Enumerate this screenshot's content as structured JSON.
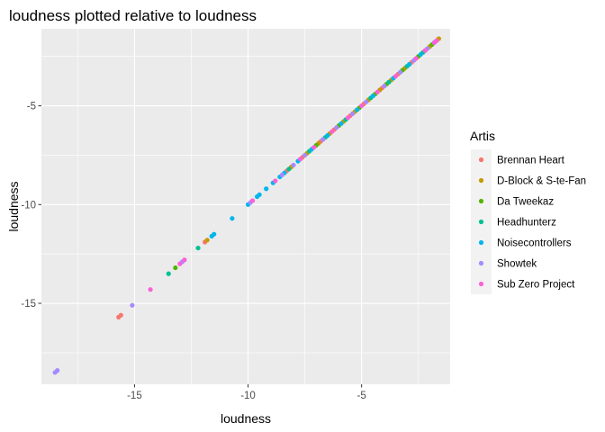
{
  "chart_data": {
    "type": "scatter",
    "title": "loudness plotted relative to loudness",
    "xlabel": "loudness",
    "ylabel": "loudness",
    "xlim": [
      -19.1,
      -1.1
    ],
    "ylim": [
      -19.1,
      -1.1
    ],
    "x_ticks": [
      -15,
      -10,
      -5
    ],
    "y_ticks": [
      -15,
      -10,
      -5
    ],
    "grid": true,
    "legend": {
      "title": "Artis",
      "position": "right"
    },
    "series": [
      {
        "name": "Brennan Heart",
        "color": "#F8766D",
        "points": [
          [
            -15.7,
            -15.7
          ],
          [
            -15.6,
            -15.6
          ],
          [
            -11.9,
            -11.9
          ],
          [
            -8.3,
            -8.3
          ],
          [
            -7.6,
            -7.6
          ],
          [
            -6.8,
            -6.8
          ],
          [
            -6.2,
            -6.2
          ],
          [
            -5.5,
            -5.5
          ],
          [
            -4.9,
            -4.9
          ],
          [
            -4.1,
            -4.1
          ],
          [
            -3.4,
            -3.4
          ],
          [
            -2.8,
            -2.8
          ],
          [
            -2.2,
            -2.2
          ],
          [
            -1.7,
            -1.7
          ]
        ]
      },
      {
        "name": "D-Block & S-te-Fan",
        "color": "#C49A00",
        "points": [
          [
            -11.8,
            -11.8
          ],
          [
            -8.1,
            -8.1
          ],
          [
            -7.4,
            -7.4
          ],
          [
            -6.9,
            -6.9
          ],
          [
            -6.4,
            -6.4
          ],
          [
            -5.8,
            -5.8
          ],
          [
            -5.3,
            -5.3
          ],
          [
            -4.7,
            -4.7
          ],
          [
            -4.2,
            -4.2
          ],
          [
            -3.7,
            -3.7
          ],
          [
            -3.1,
            -3.1
          ],
          [
            -2.6,
            -2.6
          ],
          [
            -2.0,
            -2.0
          ],
          [
            -1.6,
            -1.6
          ]
        ]
      },
      {
        "name": "Da Tweekaz",
        "color": "#53B400",
        "points": [
          [
            -13.2,
            -13.2
          ],
          [
            -7.0,
            -7.0
          ],
          [
            -6.0,
            -6.0
          ],
          [
            -5.1,
            -5.1
          ],
          [
            -4.4,
            -4.4
          ],
          [
            -3.9,
            -3.9
          ],
          [
            -3.2,
            -3.2
          ],
          [
            -2.5,
            -2.5
          ],
          [
            -1.9,
            -1.9
          ]
        ]
      },
      {
        "name": "Headhunterz",
        "color": "#00C094",
        "points": [
          [
            -13.5,
            -13.5
          ],
          [
            -12.2,
            -12.2
          ],
          [
            -8.2,
            -8.2
          ],
          [
            -7.3,
            -7.3
          ],
          [
            -6.6,
            -6.6
          ],
          [
            -5.7,
            -5.7
          ],
          [
            -4.6,
            -4.6
          ],
          [
            -3.8,
            -3.8
          ],
          [
            -3.0,
            -3.0
          ],
          [
            -2.3,
            -2.3
          ]
        ]
      },
      {
        "name": "Noisecontrollers",
        "color": "#00B6EB",
        "points": [
          [
            -11.6,
            -11.6
          ],
          [
            -11.5,
            -11.5
          ],
          [
            -10.7,
            -10.7
          ],
          [
            -10.0,
            -10.0
          ],
          [
            -9.6,
            -9.6
          ],
          [
            -9.5,
            -9.5
          ],
          [
            -9.2,
            -9.2
          ],
          [
            -8.9,
            -8.9
          ],
          [
            -8.6,
            -8.6
          ],
          [
            -8.4,
            -8.4
          ],
          [
            -7.8,
            -7.8
          ],
          [
            -7.2,
            -7.2
          ],
          [
            -6.5,
            -6.5
          ],
          [
            -5.9,
            -5.9
          ],
          [
            -5.2,
            -5.2
          ],
          [
            -4.5,
            -4.5
          ],
          [
            -3.6,
            -3.6
          ],
          [
            -2.9,
            -2.9
          ],
          [
            -2.4,
            -2.4
          ],
          [
            -1.8,
            -1.8
          ]
        ]
      },
      {
        "name": "Showtek",
        "color": "#A58AFF",
        "points": [
          [
            -18.5,
            -18.5
          ],
          [
            -18.4,
            -18.4
          ],
          [
            -15.1,
            -15.1
          ],
          [
            -12.9,
            -12.9
          ],
          [
            -9.9,
            -9.9
          ],
          [
            -8.5,
            -8.5
          ],
          [
            -8.0,
            -8.0
          ],
          [
            -7.5,
            -7.5
          ],
          [
            -6.7,
            -6.7
          ],
          [
            -6.1,
            -6.1
          ],
          [
            -5.4,
            -5.4
          ],
          [
            -4.8,
            -4.8
          ],
          [
            -4.0,
            -4.0
          ],
          [
            -3.3,
            -3.3
          ],
          [
            -2.7,
            -2.7
          ],
          [
            -2.1,
            -2.1
          ]
        ]
      },
      {
        "name": "Sub Zero Project",
        "color": "#FB61D7",
        "points": [
          [
            -14.3,
            -14.3
          ],
          [
            -13.0,
            -13.0
          ],
          [
            -12.8,
            -12.8
          ],
          [
            -9.8,
            -9.8
          ],
          [
            -8.8,
            -8.8
          ],
          [
            -7.7,
            -7.7
          ],
          [
            -7.1,
            -7.1
          ],
          [
            -6.3,
            -6.3
          ],
          [
            -5.6,
            -5.6
          ],
          [
            -5.0,
            -5.0
          ],
          [
            -4.3,
            -4.3
          ],
          [
            -3.5,
            -3.5
          ],
          [
            -2.6,
            -2.6
          ],
          [
            -2.2,
            -2.2
          ],
          [
            -1.8,
            -1.8
          ],
          [
            -1.7,
            -1.7
          ]
        ]
      }
    ]
  }
}
